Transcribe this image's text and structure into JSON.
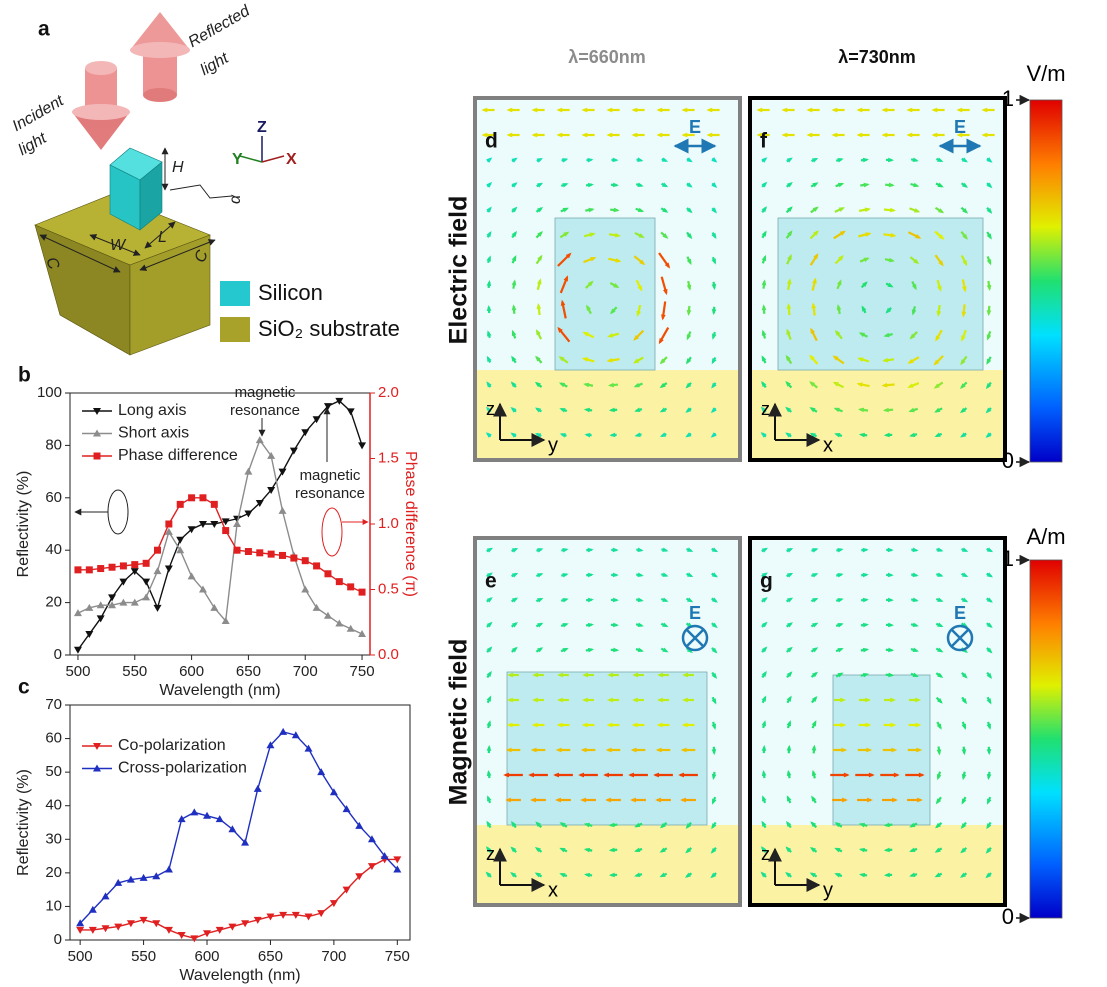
{
  "figure": {
    "panel_a": {
      "letter": "a",
      "incident_light": [
        "Incident",
        "light"
      ],
      "reflected_light": [
        "Reflected",
        "light"
      ],
      "axes": [
        "Y",
        "Z",
        "X"
      ],
      "dimensions": [
        "H",
        "W",
        "L",
        "C",
        "C",
        "α"
      ],
      "legend": [
        "Silicon",
        "SiO₂ substrate"
      ]
    },
    "panel_b_letter": "b",
    "panel_c_letter": "c",
    "field_maps": {
      "wavelengths": [
        "λ=660nm",
        "λ=730nm"
      ],
      "rows": [
        "Electric field",
        "Magnetic field"
      ],
      "panels": [
        {
          "letter": "d",
          "field_label": "E",
          "axes": [
            "z",
            "y"
          ]
        },
        {
          "letter": "f",
          "field_label": "E",
          "axes": [
            "z",
            "x"
          ]
        },
        {
          "letter": "e",
          "field_label": "E",
          "axes": [
            "z",
            "x"
          ]
        },
        {
          "letter": "g",
          "field_label": "E",
          "axes": [
            "z",
            "y"
          ]
        }
      ],
      "colorbars": [
        {
          "unit": "V/m",
          "lim": [
            0,
            1
          ],
          "ticks": [
            0,
            1
          ]
        },
        {
          "unit": "A/m",
          "lim": [
            0,
            1
          ],
          "ticks": [
            0,
            1
          ]
        }
      ]
    }
  },
  "chart_data": [
    {
      "type": "line",
      "x": [
        500,
        510,
        520,
        530,
        540,
        550,
        560,
        570,
        580,
        590,
        600,
        610,
        620,
        630,
        640,
        650,
        660,
        670,
        680,
        690,
        700,
        710,
        720,
        730,
        740,
        750
      ],
      "xlim": [
        493,
        757
      ],
      "xticks": [
        500,
        550,
        600,
        650,
        700,
        750
      ],
      "ylim": [
        0,
        100
      ],
      "yticks": [
        0,
        20,
        40,
        60,
        80,
        100
      ],
      "y2lim": [
        0,
        2
      ],
      "y2ticks": [
        {
          "value": 0,
          "label": "0.0"
        },
        0.5,
        {
          "value": 1,
          "label": "1.0"
        },
        1.5,
        {
          "value": 2,
          "label": "2.0"
        }
      ],
      "xlabel": "Wavelength (nm)",
      "ylabel": "Reflectivity (%)",
      "y2label": "Phase difference (π)",
      "legend": "upper left",
      "series": [
        {
          "name": "Long axis",
          "color": "#111111",
          "marker": "triangle-down",
          "values": [
            2,
            8,
            14,
            22,
            28,
            32,
            28,
            18,
            33,
            44,
            48,
            50,
            50,
            51,
            52,
            54,
            58,
            63,
            70,
            78,
            85,
            90,
            95,
            97,
            93,
            80
          ]
        },
        {
          "name": "Short axis",
          "color": "#8c8c8c",
          "marker": "triangle-up",
          "values": [
            16,
            18,
            19,
            19,
            20,
            20,
            22,
            32,
            47,
            40,
            30,
            25,
            18,
            13,
            50,
            70,
            82,
            76,
            55,
            38,
            25,
            18,
            15,
            12,
            10,
            8
          ]
        },
        {
          "name": "Phase difference",
          "color": "#e02020",
          "marker": "square",
          "axis": "y2",
          "values": [
            0.65,
            0.65,
            0.66,
            0.67,
            0.68,
            0.69,
            0.7,
            0.8,
            1.0,
            1.15,
            1.2,
            1.2,
            1.15,
            0.95,
            0.8,
            0.79,
            0.78,
            0.77,
            0.76,
            0.74,
            0.72,
            0.68,
            0.62,
            0.56,
            0.52,
            0.48
          ]
        }
      ],
      "annotations": [
        [
          "magnetic",
          "resonance"
        ],
        [
          "magnetic",
          "resonance"
        ]
      ]
    },
    {
      "type": "line",
      "x": [
        500,
        510,
        520,
        530,
        540,
        550,
        560,
        570,
        580,
        590,
        600,
        610,
        620,
        630,
        640,
        650,
        660,
        670,
        680,
        690,
        700,
        710,
        720,
        730,
        740,
        750
      ],
      "xlim": [
        492,
        760
      ],
      "xticks": [
        500,
        550,
        600,
        650,
        700,
        750
      ],
      "ylim": [
        0,
        70
      ],
      "yticks": [
        0,
        10,
        20,
        30,
        40,
        50,
        60,
        70
      ],
      "xlabel": "Wavelength (nm)",
      "ylabel": "Reflectivity (%)",
      "legend": "upper left",
      "series": [
        {
          "name": "Co-polarization",
          "color": "#e02020",
          "marker": "triangle-down",
          "values": [
            3,
            3,
            3.5,
            4,
            5,
            6,
            5,
            3,
            1.5,
            0.5,
            2,
            3,
            4,
            5,
            6,
            7,
            7.5,
            7.5,
            7,
            8,
            11,
            15,
            19,
            22,
            24,
            24
          ]
        },
        {
          "name": "Cross-polarization",
          "color": "#1f2fc0",
          "marker": "triangle-up",
          "values": [
            5,
            9,
            13,
            17,
            18,
            18.5,
            19,
            21,
            36,
            38,
            37,
            36,
            33,
            29,
            45,
            58,
            62,
            61,
            57,
            50,
            44,
            39,
            34,
            30,
            25,
            21
          ]
        }
      ],
      "annotations": []
    }
  ]
}
